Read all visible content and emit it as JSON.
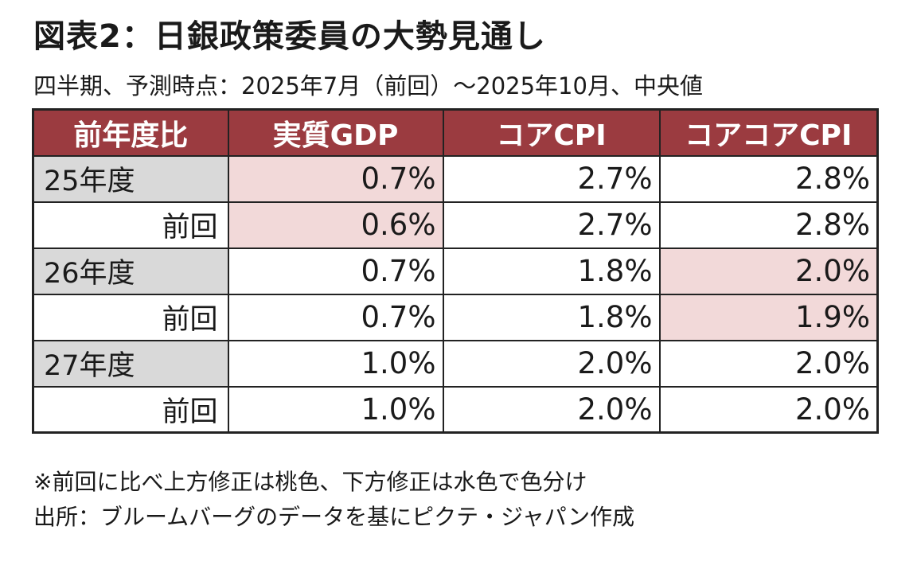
{
  "header": {
    "title": "図表2：日銀政策委員の大勢見通し",
    "subtitle": "四半期、予測時点：2025年7月（前回）～2025年10月、中央値"
  },
  "chart_data": {
    "type": "table",
    "columns": [
      "前年度比",
      "実質GDP",
      "コアCPI",
      "コアコアCPI"
    ],
    "rows": [
      {
        "label": "25年度",
        "kind": "year",
        "values": [
          "0.7%",
          "2.7%",
          "2.8%"
        ],
        "revisions": [
          "up",
          "",
          ""
        ]
      },
      {
        "label": "前回",
        "kind": "prev",
        "values": [
          "0.6%",
          "2.7%",
          "2.8%"
        ],
        "revisions": [
          "up",
          "",
          ""
        ]
      },
      {
        "label": "26年度",
        "kind": "year",
        "values": [
          "0.7%",
          "1.8%",
          "2.0%"
        ],
        "revisions": [
          "",
          "",
          "up"
        ]
      },
      {
        "label": "前回",
        "kind": "prev",
        "values": [
          "0.7%",
          "1.8%",
          "1.9%"
        ],
        "revisions": [
          "",
          "",
          "up"
        ]
      },
      {
        "label": "27年度",
        "kind": "year",
        "values": [
          "1.0%",
          "2.0%",
          "2.0%"
        ],
        "revisions": [
          "",
          "",
          ""
        ]
      },
      {
        "label": "前回",
        "kind": "prev",
        "values": [
          "1.0%",
          "2.0%",
          "2.0%"
        ],
        "revisions": [
          "",
          "",
          ""
        ]
      }
    ]
  },
  "footer": {
    "note": "※前回に比べ上方修正は桃色、下方修正は水色で色分け",
    "source": "出所：ブルームバーグのデータを基にピクテ・ジャパン作成"
  },
  "colors": {
    "header_bg": "#9b3b40",
    "year_label_bg": "#d9d9d9",
    "upward_revision": "#f2d9d9",
    "downward_revision": "#d5e9f5"
  }
}
